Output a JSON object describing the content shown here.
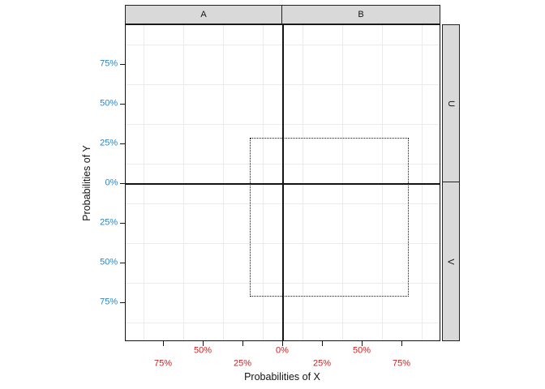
{
  "chart_data": {
    "type": "scatter",
    "title": "",
    "xlabel": "Probabilities of X",
    "ylabel": "Probabilities of Y",
    "xlim": [
      -99,
      99
    ],
    "ylim": [
      -99,
      99
    ],
    "x_ticks": [
      -75,
      -50,
      -25,
      0,
      25,
      50,
      75
    ],
    "x_tick_labels": [
      "75%",
      "50%",
      "25%",
      "0%",
      "25%",
      "50%",
      "75%"
    ],
    "x_tick_label_dodge": "two-row staggered",
    "y_ticks": [
      75,
      50,
      25,
      0,
      -25,
      -50,
      -75
    ],
    "y_tick_labels": [
      "75%",
      "50%",
      "25%",
      "0%",
      "25%",
      "50%",
      "75%"
    ],
    "facets": {
      "columns": [
        "A",
        "B"
      ],
      "rows": [
        "U",
        "V"
      ]
    },
    "reference_lines": {
      "x": 0,
      "y": 0
    },
    "annotations": [
      {
        "shape": "rect",
        "line_style": "dotted",
        "x0": -21,
        "x1": 79,
        "y0": -71,
        "y1": 29
      }
    ],
    "series": [],
    "grid": "minor_only",
    "minor_grid_positions": [
      -87.5,
      -62.5,
      -37.5,
      -12.5,
      12.5,
      37.5,
      62.5,
      87.5
    ],
    "legend": "none",
    "colors": {
      "x_tick_label": "#cc2222",
      "y_tick_label": "#3182bd",
      "grid": "#ebebeb",
      "line": "#141414",
      "strip_bg": "#d9d9d9",
      "panel_bg": "#ffffff"
    }
  }
}
